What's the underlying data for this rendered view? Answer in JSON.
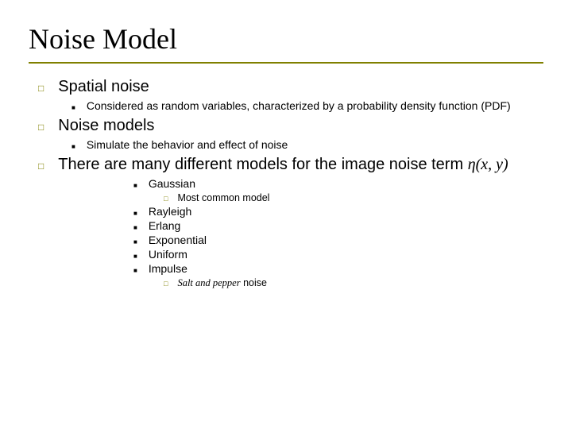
{
  "colors": {
    "accent": "#808000",
    "text": "#000000",
    "background": "#ffffff"
  },
  "title": "Noise Model",
  "sections": [
    {
      "heading": "Spatial noise",
      "sub": [
        "Considered as random variables, characterized by a probability density function (PDF)"
      ]
    },
    {
      "heading": "Noise models",
      "sub": [
        "Simulate the behavior and effect of noise"
      ]
    }
  ],
  "third": {
    "heading_a": "There are many different models for the image noise term ",
    "heading_b": "η(x, y)",
    "items": [
      {
        "label": "Gaussian",
        "note": "Most common model"
      },
      {
        "label": "Rayleigh"
      },
      {
        "label": "Erlang"
      },
      {
        "label": "Exponential"
      },
      {
        "label": "Uniform"
      },
      {
        "label": "Impulse",
        "note_italic": "Salt and pepper",
        "note_tail": " noise"
      }
    ]
  }
}
